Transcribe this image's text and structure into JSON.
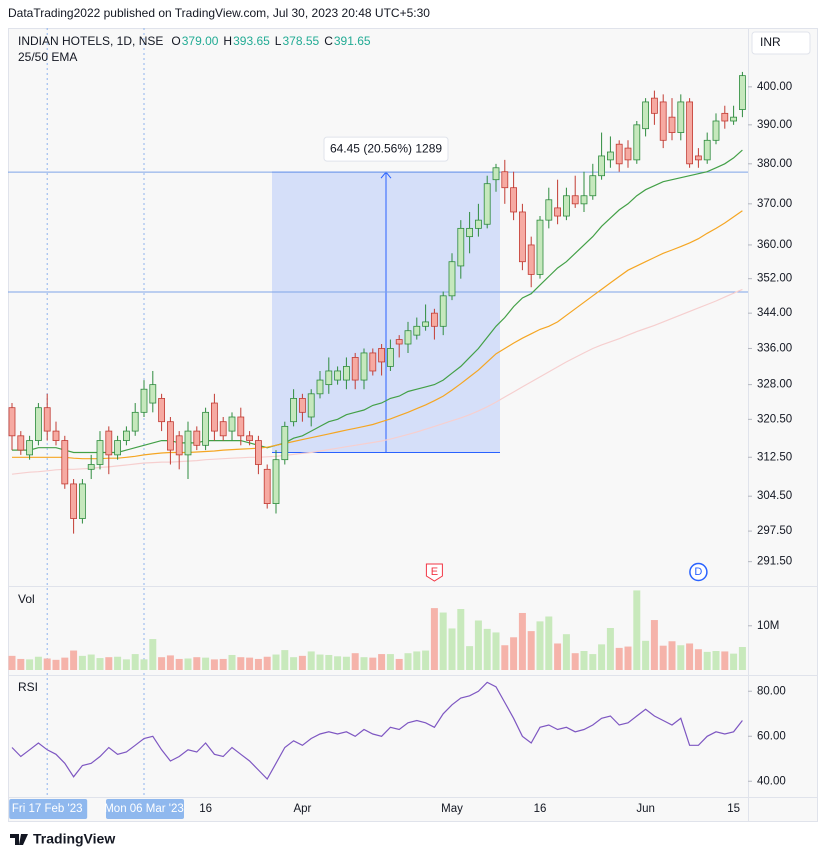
{
  "header": {
    "publisher": "DataTrading2022 published on TradingView.com, Jul 30, 2023 20:48 UTC+5:30"
  },
  "footer": {
    "brand": "TradingView"
  },
  "chart_data": [
    {
      "type": "candlestick",
      "title": "INDIAN HOTELS, 1D, NSE",
      "indicator_label": "25/50 EMA",
      "currency": "INR",
      "legend_ohlc": [
        {
          "key": "O",
          "value": "379.00"
        },
        {
          "key": "H",
          "value": "393.65"
        },
        {
          "key": "L",
          "value": "378.55"
        },
        {
          "key": "C",
          "value": "391.65"
        }
      ],
      "categories": [
        null,
        null,
        null,
        null,
        "Fri 17 Feb '23",
        null,
        null,
        null,
        null,
        null,
        null,
        null,
        null,
        null,
        null,
        "Mon 06 Mar '23",
        null,
        null,
        null,
        null,
        null,
        null,
        "16",
        null,
        null,
        null,
        null,
        null,
        null,
        null,
        null,
        null,
        null,
        "Apr",
        null,
        null,
        null,
        null,
        null,
        null,
        null,
        null,
        null,
        null,
        null,
        null,
        null,
        null,
        null,
        null,
        "May",
        null,
        null,
        null,
        null,
        null,
        null,
        null,
        null,
        null,
        "16",
        null,
        null,
        null,
        null,
        null,
        null,
        null,
        null,
        null,
        null,
        null,
        "Jun",
        null,
        null,
        null,
        null,
        null,
        null,
        null,
        null,
        null,
        "15",
        null
      ],
      "open": [
        323,
        317,
        313,
        316,
        323,
        318,
        316,
        307,
        300,
        310,
        311,
        318,
        313,
        316,
        318,
        322,
        324,
        325,
        320,
        317,
        313,
        318,
        315,
        324,
        320,
        318,
        321,
        317,
        316,
        310,
        303,
        312,
        320,
        325,
        321,
        326,
        328,
        329,
        329,
        334,
        329,
        335,
        336,
        332,
        338,
        337,
        339,
        341,
        344,
        341,
        348,
        355,
        362,
        364,
        365,
        376,
        378,
        374,
        368,
        360,
        353,
        366,
        369,
        367,
        372,
        370,
        372,
        377,
        381,
        385,
        384,
        381,
        389,
        397,
        396,
        392,
        388,
        396,
        382,
        381,
        386,
        393,
        391,
        394
      ],
      "high": [
        324,
        318,
        317,
        324,
        326,
        320,
        317,
        308,
        308,
        313,
        318,
        319,
        317,
        319,
        324,
        329,
        331,
        326,
        321,
        318,
        320,
        319,
        323,
        326,
        321,
        322,
        323,
        318,
        317,
        311,
        314,
        320,
        327,
        326,
        327,
        331,
        334,
        332,
        334,
        335,
        336,
        336,
        337,
        338,
        339,
        342,
        343,
        346,
        345,
        349,
        358,
        366,
        368,
        370,
        377,
        380,
        381,
        378,
        370,
        362,
        367,
        374,
        376,
        374,
        377,
        378,
        380,
        388,
        387,
        386,
        386,
        391,
        397,
        399,
        398,
        397,
        398,
        397,
        384,
        388,
        393,
        395,
        395,
        404
      ],
      "low": [
        314,
        313,
        312,
        315,
        316,
        315,
        306,
        297,
        299,
        308,
        310,
        309,
        312,
        315,
        317,
        321,
        322,
        318,
        311,
        310,
        308,
        314,
        314,
        316,
        316,
        316,
        315,
        315,
        309,
        302,
        301,
        311,
        319,
        320,
        319,
        325,
        326,
        328,
        327,
        327,
        327,
        330,
        330,
        331,
        334,
        335,
        338,
        340,
        338,
        339,
        347,
        352,
        358,
        362,
        364,
        373,
        370,
        366,
        354,
        350,
        352,
        364,
        365,
        366,
        369,
        368,
        371,
        376,
        379,
        378,
        379,
        380,
        387,
        390,
        384,
        386,
        386,
        379,
        379,
        380,
        385,
        389,
        390,
        392
      ],
      "close": [
        317,
        314,
        316,
        323,
        318,
        316,
        307,
        300,
        307,
        311,
        316,
        313,
        316,
        318,
        322,
        327,
        328,
        320,
        314,
        313,
        318,
        315,
        322,
        318,
        317,
        321,
        317,
        316,
        311,
        303,
        312,
        319,
        325,
        322,
        326,
        329,
        331,
        331,
        332,
        329,
        335,
        331,
        333,
        336,
        337,
        340,
        341,
        342,
        341,
        348,
        356,
        364,
        364,
        366,
        375,
        379,
        374,
        368,
        356,
        353,
        366,
        371,
        367,
        372,
        370,
        372,
        377,
        382,
        383,
        380,
        381,
        390,
        396,
        393,
        386,
        388,
        396,
        380,
        381,
        386,
        391,
        391,
        392,
        403
      ],
      "up_color": "#2e8b3e",
      "up_fill": "#c6e8bd",
      "down_color": "#c23b33",
      "down_fill": "#f6aaa2",
      "lines": [
        {
          "color": "#43a047",
          "values": [
            314,
            314,
            314,
            314.5,
            314.5,
            314.5,
            314,
            313.5,
            313.5,
            313.5,
            313.5,
            313.5,
            313.5,
            314,
            314.5,
            315,
            315.5,
            316,
            316,
            315.5,
            315.5,
            315.5,
            316,
            316,
            316,
            316,
            316,
            315.5,
            315,
            314.5,
            315,
            315.5,
            316.5,
            317,
            318,
            319,
            320,
            320.5,
            321.5,
            322,
            322.5,
            323.5,
            324,
            325,
            325.5,
            326.5,
            327,
            327.5,
            328,
            329,
            330.5,
            332,
            334,
            336,
            338.5,
            341,
            343,
            345.5,
            347.5,
            348.5,
            350.5,
            352.5,
            354.5,
            356,
            358,
            360,
            362,
            364.5,
            366.5,
            368.5,
            370,
            372,
            373.5,
            374.5,
            375.5,
            376,
            376.5,
            377,
            377.5,
            378,
            379,
            380,
            381.5,
            383.5
          ]
        },
        {
          "color": "#f5a623",
          "values": [
            312.5,
            312.5,
            312.5,
            312.5,
            312.5,
            312.5,
            312.5,
            312.3,
            312.2,
            312.2,
            312.2,
            312.3,
            312.3,
            312.5,
            312.7,
            313,
            313.2,
            313.4,
            313.5,
            313.5,
            313.5,
            313.6,
            313.7,
            313.8,
            314,
            314.1,
            314.2,
            314.3,
            314.4,
            314.6,
            315,
            315.4,
            315.8,
            316.2,
            316.6,
            317,
            317.4,
            317.8,
            318.2,
            318.6,
            319,
            319.4,
            320,
            320.6,
            321.3,
            322,
            322.8,
            323.6,
            324.5,
            325.5,
            326.8,
            328.2,
            329.7,
            331.2,
            333,
            334.8,
            336,
            337.2,
            338.3,
            339.3,
            340.3,
            341,
            342,
            343.5,
            345,
            346.5,
            348,
            349.5,
            351,
            352.5,
            354,
            355,
            356,
            357,
            358,
            358.8,
            359.6,
            360.5,
            361.5,
            362.8,
            364,
            365.3,
            366.8,
            368.3
          ]
        },
        {
          "color": "#f6cfcf",
          "values": [
            309,
            309.2,
            309.4,
            309.5,
            309.7,
            309.9,
            310,
            310,
            310.1,
            310.2,
            310.4,
            310.5,
            310.7,
            310.9,
            311.1,
            311.3,
            311.4,
            311.5,
            311.5,
            311.6,
            311.7,
            311.8,
            312,
            312.1,
            312.2,
            312.3,
            312.4,
            312.5,
            312.5,
            312.6,
            312.7,
            312.9,
            313.1,
            313.3,
            313.5,
            313.8,
            314.1,
            314.4,
            314.7,
            315,
            315.3,
            315.6,
            315.9,
            316.3,
            316.8,
            317.3,
            317.8,
            318.4,
            319,
            319.6,
            320.2,
            320.8,
            321.5,
            322.3,
            323.2,
            324.2,
            325.3,
            326.4,
            327.5,
            328.6,
            329.7,
            330.8,
            331.9,
            333,
            334,
            335,
            336,
            336.8,
            337.5,
            338.2,
            339,
            339.8,
            340.5,
            341.2,
            342,
            342.8,
            343.6,
            344.4,
            345.2,
            346,
            346.8,
            347.7,
            348.6,
            349.5
          ]
        }
      ],
      "measure": {
        "label": "64.45 (20.56%) 1289",
        "low": 313.5,
        "high": 377.9,
        "color": "#2962ff"
      },
      "hlines": [
        377.9,
        348.9
      ],
      "events": [
        {
          "label": "E",
          "color": "#f23645"
        },
        {
          "label": "D",
          "color": "#2962ff"
        }
      ],
      "log_scale": true,
      "ylim": [
        287,
        416
      ],
      "yticks": [
        {
          "value": 291.5,
          "label": "291.50"
        },
        {
          "value": 297.5,
          "label": "297.50"
        },
        {
          "value": 304.5,
          "label": "304.50"
        },
        {
          "value": 312.5,
          "label": "312.50"
        },
        {
          "value": 320.5,
          "label": "320.50"
        },
        {
          "value": 328,
          "label": "328.00"
        },
        {
          "value": 336,
          "label": "336.00"
        },
        {
          "value": 344,
          "label": "344.00"
        },
        {
          "value": 352,
          "label": "352.00"
        },
        {
          "value": 360,
          "label": "360.00"
        },
        {
          "value": 370,
          "label": "370.00"
        },
        {
          "value": 380,
          "label": "380.00"
        },
        {
          "value": 390,
          "label": "390.00"
        },
        {
          "value": 400,
          "label": "400.00"
        }
      ]
    },
    {
      "type": "bar",
      "title": "Vol",
      "up_color": "#c8e9bc",
      "down_color": "#f5b3aa",
      "values": [
        3.2,
        2.5,
        2.4,
        3.0,
        2.6,
        2.3,
        2.8,
        4.4,
        3.2,
        3.5,
        2.7,
        2.9,
        3.0,
        2.4,
        3.6,
        2.4,
        7.0,
        2.9,
        3.3,
        2.5,
        2.6,
        2.9,
        2.8,
        2.4,
        2.5,
        3.4,
        2.9,
        2.8,
        2.5,
        3.0,
        3.5,
        4.5,
        2.9,
        3.2,
        4.2,
        3.5,
        3.4,
        3.1,
        3.0,
        3.8,
        2.9,
        2.8,
        3.6,
        3.6,
        2.5,
        3.8,
        4.2,
        4.4,
        14.0,
        13.0,
        9.4,
        13.8,
        5.4,
        11.2,
        9.3,
        8.5,
        5.6,
        7.4,
        12.9,
        8.8,
        11.0,
        12.1,
        6.0,
        8.1,
        3.8,
        4.3,
        3.6,
        5.8,
        9.5,
        5.0,
        5.3,
        18.0,
        6.6,
        11.3,
        5.5,
        6.5,
        5.6,
        6.0,
        4.7,
        4.1,
        4.3,
        4.2,
        3.7,
        5.2
      ],
      "ylim": [
        0,
        19
      ],
      "yticks": [
        {
          "value": 10,
          "label": "10M"
        }
      ]
    },
    {
      "type": "line",
      "title": "RSI",
      "color": "#7e57c2",
      "values": [
        55,
        51,
        54,
        57,
        54,
        52,
        48,
        42,
        47,
        48,
        51,
        55,
        52,
        53,
        56,
        59,
        60,
        54,
        49,
        51,
        54,
        53,
        57,
        52,
        51,
        55,
        52,
        49,
        45,
        41,
        48,
        55,
        58,
        56,
        59,
        61,
        62,
        61,
        62,
        60,
        63,
        61,
        60,
        64,
        63,
        66,
        67,
        66,
        64,
        70,
        74,
        77,
        78,
        80,
        84,
        82,
        75,
        68,
        60,
        57,
        64,
        65,
        63,
        64,
        62,
        63,
        65,
        68,
        69,
        65,
        66,
        69,
        72,
        69,
        67,
        65,
        68,
        56,
        56,
        60,
        62,
        61,
        62,
        67
      ],
      "ylim": [
        33,
        85
      ],
      "yticks": [
        {
          "value": 40,
          "label": "40.00"
        },
        {
          "value": 60,
          "label": "60.00"
        },
        {
          "value": 80,
          "label": "80.00"
        }
      ]
    }
  ]
}
